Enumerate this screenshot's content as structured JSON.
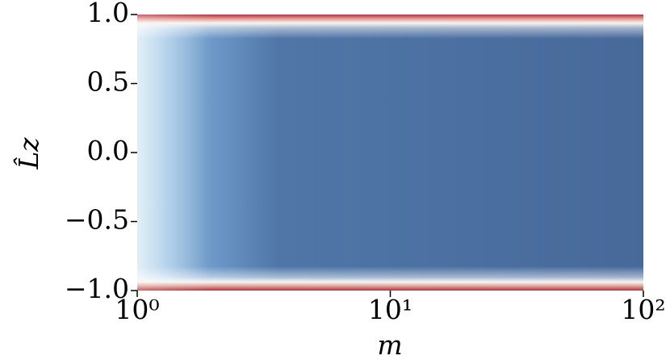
{
  "chart_data": {
    "type": "heatmap",
    "x_label": "m",
    "y_label": "L̂z",
    "xscale": "log",
    "xlim": [
      1,
      100
    ],
    "xticks": [
      {
        "value": 1,
        "label": "10⁰"
      },
      {
        "value": 10,
        "label": "10¹"
      },
      {
        "value": 100,
        "label": "10²"
      }
    ],
    "ylim": [
      -1,
      1
    ],
    "yticks": [
      {
        "value": -1,
        "label": "−1.0"
      },
      {
        "value": -0.5,
        "label": "−0.5"
      },
      {
        "value": 0,
        "label": "0.0"
      },
      {
        "value": 0.5,
        "label": "0.5"
      },
      {
        "value": 1,
        "label": "1.0"
      }
    ]
  }
}
